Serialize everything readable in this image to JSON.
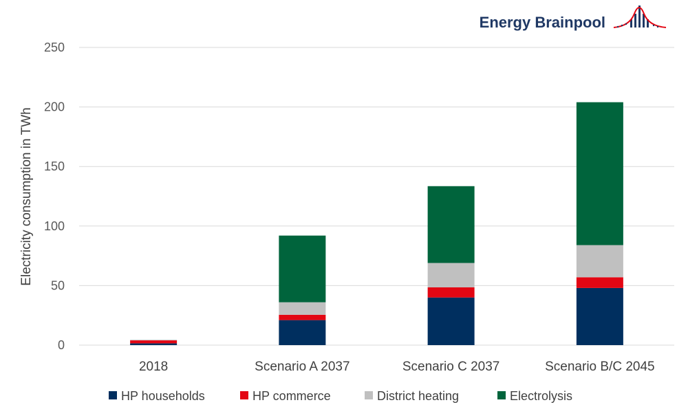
{
  "brand": {
    "name": "Energy Brainpool",
    "logo_icon": "bell-curve-bars-logo",
    "text_color": "#1f3864",
    "curve_color": "#e30613"
  },
  "chart_data": {
    "type": "bar",
    "stacked": true,
    "categories": [
      "2018",
      "Scenario A 2037",
      "Scenario C 2037",
      "Scenario B/C 2045"
    ],
    "series": [
      {
        "name": "HP households",
        "color": "#002f5f",
        "values": [
          1.5,
          21,
          40,
          48
        ]
      },
      {
        "name": "HP commerce",
        "color": "#e30613",
        "values": [
          2.5,
          4.5,
          8.5,
          9
        ]
      },
      {
        "name": "District heating",
        "color": "#c0c0c0",
        "values": [
          0.5,
          10.5,
          20.5,
          27
        ]
      },
      {
        "name": "Electrolysis",
        "color": "#00643c",
        "values": [
          0,
          56,
          64.5,
          120
        ]
      }
    ],
    "ylabel": "Electricity consumption in TWh",
    "xlabel": "",
    "ylim": [
      0,
      250
    ],
    "yticks": [
      0,
      50,
      100,
      150,
      200,
      250
    ],
    "grid": true,
    "legend_position": "bottom"
  }
}
